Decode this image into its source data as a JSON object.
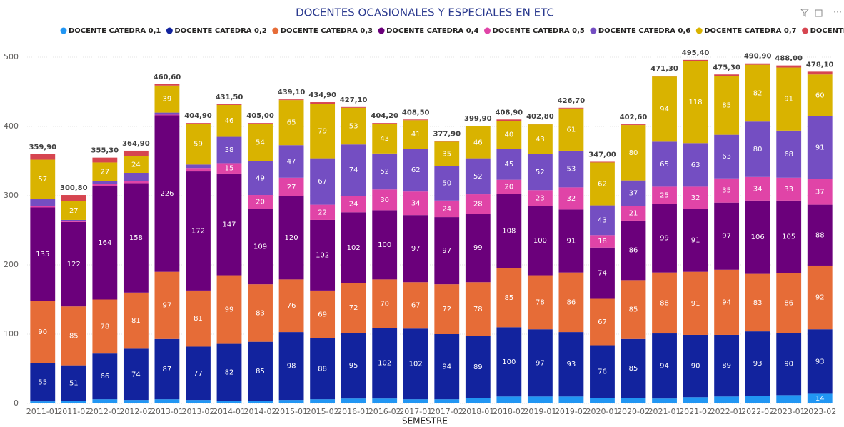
{
  "chart_data": {
    "type": "stacked_bar",
    "title": "DOCENTES OCASIONALES Y ESPECIALES EN ETC",
    "x_label": "SEMESTRE",
    "categories": [
      "2011-01",
      "2011-02",
      "2012-01",
      "2012-02",
      "2013-01",
      "2013-02",
      "2014-01",
      "2014-02",
      "2015-01",
      "2015-02",
      "2016-01",
      "2016-02",
      "2017-01",
      "2017-02",
      "2018-01",
      "2018-02",
      "2019-01",
      "2019-02",
      "2020-01",
      "2020-02",
      "2021-01",
      "2021-02",
      "2022-01",
      "2022-02",
      "2023-01",
      "2023-02"
    ],
    "total_labels": [
      "359,90",
      "300,80",
      "355,30",
      "364,90",
      "460,60",
      "404,90",
      "431,50",
      "405,00",
      "439,10",
      "434,90",
      "427,10",
      "404,20",
      "408,50",
      "377,90",
      "399,90",
      "408,90",
      "402,80",
      "426,70",
      "347,00",
      "402,60",
      "471,30",
      "495,40",
      "475,30",
      "490,90",
      "488,00",
      "478,10"
    ],
    "series": [
      {
        "name": "DOCENTE CATEDRA 0,1",
        "color": "#2196f3",
        "values": [
          3,
          4,
          6,
          5,
          6,
          5,
          4,
          4,
          5,
          6,
          7,
          7,
          6,
          6,
          8,
          10,
          10,
          10,
          8,
          8,
          7,
          9,
          10,
          11,
          12,
          14
        ]
      },
      {
        "name": "DOCENTE CATEDRA 0,2",
        "color": "#12239e",
        "values": [
          55,
          51,
          66,
          74,
          87,
          77,
          82,
          85,
          98,
          88,
          95,
          102,
          102,
          94,
          89,
          100,
          97,
          93,
          76,
          85,
          94,
          90,
          89,
          93,
          90,
          93
        ]
      },
      {
        "name": "DOCENTE CATEDRA 0,3",
        "color": "#e66c37",
        "values": [
          90,
          85,
          78,
          81,
          97,
          81,
          99,
          83,
          76,
          69,
          72,
          70,
          67,
          72,
          78,
          85,
          78,
          86,
          67,
          85,
          88,
          91,
          94,
          83,
          86,
          92
        ]
      },
      {
        "name": "DOCENTE CATEDRA 0,4",
        "color": "#6b007b",
        "values": [
          135,
          122,
          164,
          158,
          226,
          172,
          147,
          109,
          120,
          102,
          102,
          100,
          97,
          97,
          99,
          108,
          100,
          91,
          74,
          86,
          99,
          91,
          97,
          106,
          105,
          88
        ]
      },
      {
        "name": "DOCENTE CATEDRA 0,5",
        "color": "#e044a7",
        "values": [
          2,
          1,
          3,
          3,
          1,
          5,
          15,
          20,
          27,
          22,
          24,
          30,
          34,
          24,
          28,
          20,
          23,
          32,
          18,
          21,
          25,
          32,
          35,
          34,
          33,
          37
        ]
      },
      {
        "name": "DOCENTE CATEDRA 0,6",
        "color": "#744ec2",
        "values": [
          10,
          2,
          4,
          12,
          3,
          5,
          38,
          49,
          47,
          67,
          74,
          52,
          62,
          50,
          52,
          45,
          52,
          53,
          43,
          37,
          65,
          63,
          63,
          80,
          68,
          91
        ]
      },
      {
        "name": "DOCENTE CATEDRA 0,7",
        "color": "#d9b300",
        "values": [
          57,
          27,
          27,
          24,
          39,
          59,
          46,
          54,
          65,
          79,
          53,
          43,
          41,
          35,
          46,
          40,
          43,
          61,
          62,
          80,
          94,
          118,
          85,
          82,
          91,
          60
        ]
      },
      {
        "name": "DOCENTE TIEMPO COMPLETO",
        "color": "#d64550",
        "values": [
          8,
          9,
          7,
          8,
          2,
          1,
          1,
          1,
          1,
          2,
          1,
          1,
          1,
          1,
          1,
          2,
          1,
          1,
          1,
          1,
          1,
          2,
          2,
          2,
          3,
          4
        ]
      }
    ],
    "ylim": [
      0,
      500
    ],
    "yticks": [
      0,
      100,
      200,
      300,
      400,
      500
    ],
    "grid": true
  }
}
